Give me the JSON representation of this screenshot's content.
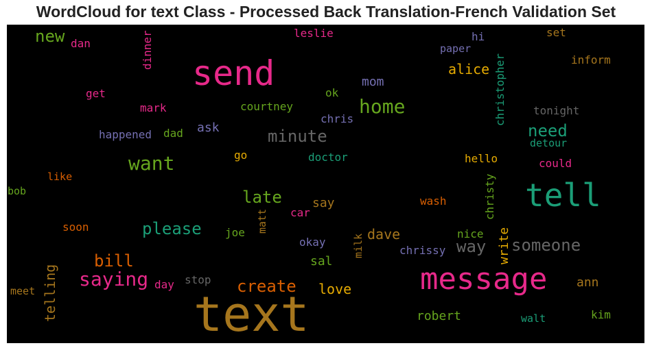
{
  "title": "WordCloud for text Class - Processed Back Translation-French Validation Set",
  "colors": {
    "background": "#000000",
    "pink": "#e7298a",
    "gold": "#a6761d",
    "green": "#66a61e",
    "teal": "#1b9e77",
    "orange": "#d95f02",
    "purple": "#7570b3",
    "yellow": "#e6ab02",
    "gray": "#666666"
  },
  "words": [
    {
      "text": "text",
      "color": "gold"
    },
    {
      "text": "message",
      "color": "pink"
    },
    {
      "text": "send",
      "color": "pink"
    },
    {
      "text": "tell",
      "color": "teal"
    },
    {
      "text": "home",
      "color": "green"
    },
    {
      "text": "want",
      "color": "green"
    },
    {
      "text": "saying",
      "color": "pink"
    },
    {
      "text": "create",
      "color": "orange"
    },
    {
      "text": "bill",
      "color": "orange"
    },
    {
      "text": "please",
      "color": "teal"
    },
    {
      "text": "minute",
      "color": "gray"
    },
    {
      "text": "someone",
      "color": "gray"
    },
    {
      "text": "way",
      "color": "gray"
    },
    {
      "text": "need",
      "color": "teal"
    },
    {
      "text": "late",
      "color": "green"
    },
    {
      "text": "new",
      "color": "green"
    },
    {
      "text": "alice",
      "color": "yellow"
    },
    {
      "text": "telling",
      "color": "gold"
    },
    {
      "text": "dave",
      "color": "gold"
    },
    {
      "text": "love",
      "color": "yellow"
    },
    {
      "text": "robert",
      "color": "green"
    },
    {
      "text": "sal",
      "color": "green"
    },
    {
      "text": "say",
      "color": "gold"
    },
    {
      "text": "ann",
      "color": "gold"
    },
    {
      "text": "write",
      "color": "yellow"
    },
    {
      "text": "mom",
      "color": "purple"
    },
    {
      "text": "ask",
      "color": "purple"
    },
    {
      "text": "christopher",
      "color": "teal"
    },
    {
      "text": "christy",
      "color": "green"
    },
    {
      "text": "dinner",
      "color": "pink"
    },
    {
      "text": "inform",
      "color": "gold"
    },
    {
      "text": "tonight",
      "color": "gray"
    },
    {
      "text": "detour",
      "color": "teal"
    },
    {
      "text": "hello",
      "color": "yellow"
    },
    {
      "text": "could",
      "color": "pink"
    },
    {
      "text": "doctor",
      "color": "teal"
    },
    {
      "text": "courtney",
      "color": "green"
    },
    {
      "text": "chris",
      "color": "purple"
    },
    {
      "text": "ok",
      "color": "green"
    },
    {
      "text": "paper",
      "color": "purple"
    },
    {
      "text": "hi",
      "color": "purple"
    },
    {
      "text": "set",
      "color": "gold"
    },
    {
      "text": "leslie",
      "color": "pink"
    },
    {
      "text": "dan",
      "color": "pink"
    },
    {
      "text": "get",
      "color": "pink"
    },
    {
      "text": "mark",
      "color": "pink"
    },
    {
      "text": "happened",
      "color": "purple"
    },
    {
      "text": "dad",
      "color": "green"
    },
    {
      "text": "go",
      "color": "yellow"
    },
    {
      "text": "like",
      "color": "orange"
    },
    {
      "text": "bob",
      "color": "green"
    },
    {
      "text": "soon",
      "color": "orange"
    },
    {
      "text": "joe",
      "color": "green"
    },
    {
      "text": "matt",
      "color": "gold"
    },
    {
      "text": "car",
      "color": "pink"
    },
    {
      "text": "wash",
      "color": "orange"
    },
    {
      "text": "okay",
      "color": "purple"
    },
    {
      "text": "milk",
      "color": "gold"
    },
    {
      "text": "chrissy",
      "color": "purple"
    },
    {
      "text": "nice",
      "color": "green"
    },
    {
      "text": "stop",
      "color": "gray"
    },
    {
      "text": "day",
      "color": "pink"
    },
    {
      "text": "meet",
      "color": "gold"
    },
    {
      "text": "walt",
      "color": "teal"
    },
    {
      "text": "kim",
      "color": "green"
    }
  ]
}
